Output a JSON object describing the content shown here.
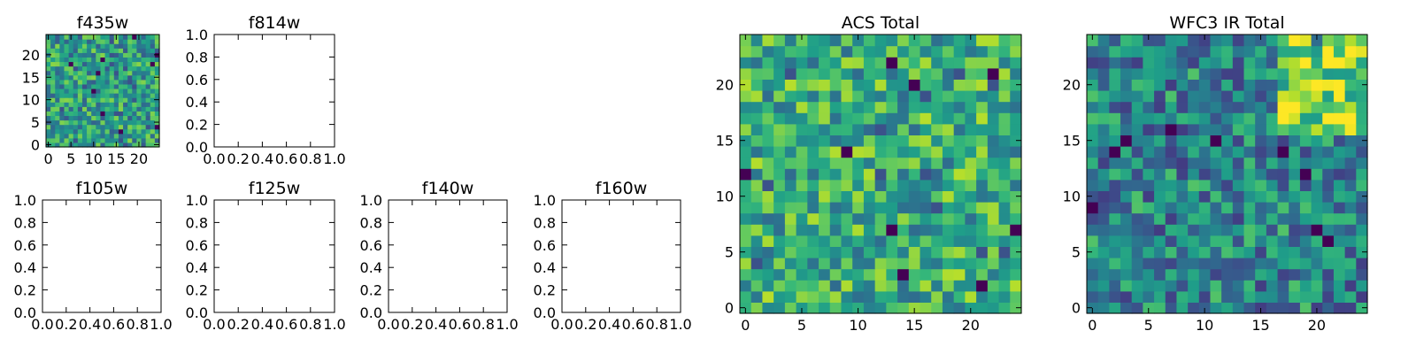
{
  "figure": {
    "background": "#ffffff"
  },
  "chart_data": [
    {
      "id": "f435w",
      "type": "heatmap",
      "title": "f435w",
      "colormap": "viridis",
      "grid_size": 25,
      "seed": 435,
      "bias": 0.55,
      "xlim": [
        -0.5,
        24.5
      ],
      "ylim": [
        -0.5,
        24.5
      ],
      "xticks": [
        0,
        5,
        10,
        15,
        20
      ],
      "xtick_labels": [
        "0",
        "5",
        "10",
        "15",
        "20"
      ],
      "yticks": [
        0,
        5,
        10,
        15,
        20
      ],
      "ytick_labels": [
        "0",
        "5",
        "10",
        "15",
        "20"
      ],
      "grid": false,
      "legend": "none"
    },
    {
      "id": "f814w",
      "type": "scatter",
      "title": "f814w",
      "series": [],
      "xlim": [
        0,
        1
      ],
      "ylim": [
        0,
        1
      ],
      "xticks": [
        0,
        0.2,
        0.4,
        0.6,
        0.8,
        1.0
      ],
      "xtick_labels": [
        "0.0",
        "0.2",
        "0.4",
        "0.6",
        "0.8",
        "1.0"
      ],
      "yticks": [
        0,
        0.2,
        0.4,
        0.6,
        0.8,
        1.0
      ],
      "ytick_labels": [
        "0.0",
        "0.2",
        "0.4",
        "0.6",
        "0.8",
        "1.0"
      ],
      "grid": false,
      "legend": "none"
    },
    {
      "id": "f105w",
      "type": "scatter",
      "title": "f105w",
      "series": [],
      "xlim": [
        0,
        1
      ],
      "ylim": [
        0,
        1
      ],
      "xticks": [
        0,
        0.2,
        0.4,
        0.6,
        0.8,
        1.0
      ],
      "xtick_labels": [
        "0.0",
        "0.2",
        "0.4",
        "0.6",
        "0.8",
        "1.0"
      ],
      "yticks": [
        0,
        0.2,
        0.4,
        0.6,
        0.8,
        1.0
      ],
      "ytick_labels": [
        "0.0",
        "0.2",
        "0.4",
        "0.6",
        "0.8",
        "1.0"
      ],
      "grid": false,
      "legend": "none"
    },
    {
      "id": "f125w",
      "type": "scatter",
      "title": "f125w",
      "series": [],
      "xlim": [
        0,
        1
      ],
      "ylim": [
        0,
        1
      ],
      "xticks": [
        0,
        0.2,
        0.4,
        0.6,
        0.8,
        1.0
      ],
      "xtick_labels": [
        "0.0",
        "0.2",
        "0.4",
        "0.6",
        "0.8",
        "1.0"
      ],
      "yticks": [
        0,
        0.2,
        0.4,
        0.6,
        0.8,
        1.0
      ],
      "ytick_labels": [
        "0.0",
        "0.2",
        "0.4",
        "0.6",
        "0.8",
        "1.0"
      ],
      "grid": false,
      "legend": "none"
    },
    {
      "id": "f140w",
      "type": "scatter",
      "title": "f140w",
      "series": [],
      "xlim": [
        0,
        1
      ],
      "ylim": [
        0,
        1
      ],
      "xticks": [
        0,
        0.2,
        0.4,
        0.6,
        0.8,
        1.0
      ],
      "xtick_labels": [
        "0.0",
        "0.2",
        "0.4",
        "0.6",
        "0.8",
        "1.0"
      ],
      "yticks": [
        0,
        0.2,
        0.4,
        0.6,
        0.8,
        1.0
      ],
      "ytick_labels": [
        "0.0",
        "0.2",
        "0.4",
        "0.6",
        "0.8",
        "1.0"
      ],
      "grid": false,
      "legend": "none"
    },
    {
      "id": "f160w",
      "type": "scatter",
      "title": "f160w",
      "series": [],
      "xlim": [
        0,
        1
      ],
      "ylim": [
        0,
        1
      ],
      "xticks": [
        0,
        0.2,
        0.4,
        0.6,
        0.8,
        1.0
      ],
      "xtick_labels": [
        "0.0",
        "0.2",
        "0.4",
        "0.6",
        "0.8",
        "1.0"
      ],
      "yticks": [
        0,
        0.2,
        0.4,
        0.6,
        0.8,
        1.0
      ],
      "ytick_labels": [
        "0.0",
        "0.2",
        "0.4",
        "0.6",
        "0.8",
        "1.0"
      ],
      "grid": false,
      "legend": "none"
    },
    {
      "id": "acs-total",
      "type": "heatmap",
      "title": "ACS Total",
      "colormap": "viridis",
      "grid_size": 25,
      "seed": 777,
      "bias": 0.62,
      "xlim": [
        -0.5,
        24.5
      ],
      "ylim": [
        -0.5,
        24.5
      ],
      "xticks": [
        0,
        5,
        10,
        15,
        20
      ],
      "xtick_labels": [
        "0",
        "5",
        "10",
        "15",
        "20"
      ],
      "yticks": [
        0,
        5,
        10,
        15,
        20
      ],
      "ytick_labels": [
        "0",
        "5",
        "10",
        "15",
        "20"
      ],
      "grid": false,
      "legend": "none"
    },
    {
      "id": "wfc3-ir-total",
      "type": "heatmap",
      "title": "WFC3 IR Total",
      "colormap": "viridis",
      "grid_size": 25,
      "seed": 3141,
      "bias": 0.45,
      "hot_region": {
        "x": [
          17,
          24
        ],
        "y": [
          16,
          24
        ]
      },
      "xlim": [
        -0.5,
        24.5
      ],
      "ylim": [
        -0.5,
        24.5
      ],
      "xticks": [
        0,
        5,
        10,
        15,
        20
      ],
      "xtick_labels": [
        "0",
        "5",
        "10",
        "15",
        "20"
      ],
      "yticks": [
        0,
        5,
        10,
        15,
        20
      ],
      "ytick_labels": [
        "0",
        "5",
        "10",
        "15",
        "20"
      ],
      "grid": false,
      "legend": "none"
    }
  ]
}
